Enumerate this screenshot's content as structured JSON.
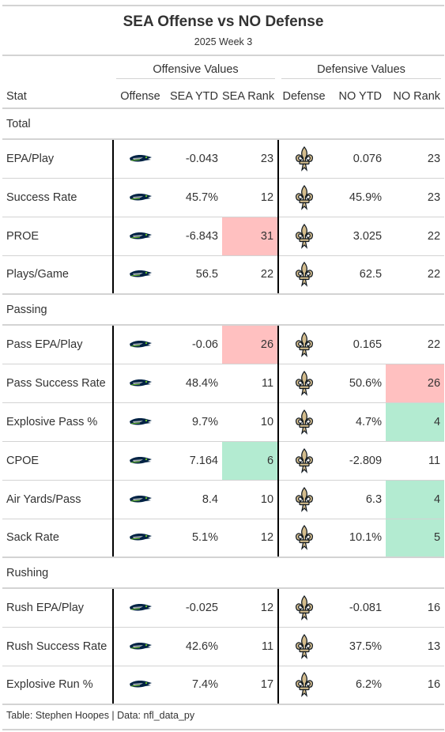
{
  "title": "SEA Offense vs NO Defense",
  "subtitle": "2025 Week 3",
  "spanners": {
    "offense": "Offensive Values",
    "defense": "Defensive Values"
  },
  "columns": {
    "stat": "Stat",
    "offense": "Offense",
    "off_ytd": "SEA YTD",
    "off_rank": "SEA Rank",
    "defense": "Defense",
    "def_ytd": "NO YTD",
    "def_rank": "NO Rank"
  },
  "groups": [
    {
      "label": "Total",
      "rows": [
        {
          "stat": "EPA/Play",
          "off_ytd": "-0.043",
          "off_rank": "23",
          "off_hl": "",
          "def_ytd": "0.076",
          "def_rank": "23",
          "def_hl": ""
        },
        {
          "stat": "Success Rate",
          "off_ytd": "45.7%",
          "off_rank": "12",
          "off_hl": "",
          "def_ytd": "45.9%",
          "def_rank": "23",
          "def_hl": ""
        },
        {
          "stat": "PROE",
          "off_ytd": "-6.843",
          "off_rank": "31",
          "off_hl": "red",
          "def_ytd": "3.025",
          "def_rank": "22",
          "def_hl": ""
        },
        {
          "stat": "Plays/Game",
          "off_ytd": "56.5",
          "off_rank": "22",
          "off_hl": "",
          "def_ytd": "62.5",
          "def_rank": "22",
          "def_hl": ""
        }
      ]
    },
    {
      "label": "Passing",
      "rows": [
        {
          "stat": "Pass EPA/Play",
          "off_ytd": "-0.06",
          "off_rank": "26",
          "off_hl": "red",
          "def_ytd": "0.165",
          "def_rank": "22",
          "def_hl": ""
        },
        {
          "stat": "Pass Success Rate",
          "off_ytd": "48.4%",
          "off_rank": "11",
          "off_hl": "",
          "def_ytd": "50.6%",
          "def_rank": "26",
          "def_hl": "red"
        },
        {
          "stat": "Explosive Pass %",
          "off_ytd": "9.7%",
          "off_rank": "10",
          "off_hl": "",
          "def_ytd": "4.7%",
          "def_rank": "4",
          "def_hl": "green"
        },
        {
          "stat": "CPOE",
          "off_ytd": "7.164",
          "off_rank": "6",
          "off_hl": "green",
          "def_ytd": "-2.809",
          "def_rank": "11",
          "def_hl": ""
        },
        {
          "stat": "Air Yards/Pass",
          "off_ytd": "8.4",
          "off_rank": "10",
          "off_hl": "",
          "def_ytd": "6.3",
          "def_rank": "4",
          "def_hl": "green"
        },
        {
          "stat": "Sack Rate",
          "off_ytd": "5.1%",
          "off_rank": "12",
          "off_hl": "",
          "def_ytd": "10.1%",
          "def_rank": "5",
          "def_hl": "green"
        }
      ]
    },
    {
      "label": "Rushing",
      "rows": [
        {
          "stat": "Rush EPA/Play",
          "off_ytd": "-0.025",
          "off_rank": "12",
          "off_hl": "",
          "def_ytd": "-0.081",
          "def_rank": "16",
          "def_hl": ""
        },
        {
          "stat": "Rush Success Rate",
          "off_ytd": "42.6%",
          "off_rank": "11",
          "off_hl": "",
          "def_ytd": "37.5%",
          "def_rank": "13",
          "def_hl": ""
        },
        {
          "stat": "Explosive Run %",
          "off_ytd": "7.4%",
          "off_rank": "17",
          "off_hl": "",
          "def_ytd": "6.2%",
          "def_rank": "16",
          "def_hl": ""
        }
      ]
    }
  ],
  "icons": {
    "offense_logo": "seahawks-logo-icon",
    "defense_logo": "saints-fleur-de-lis-icon"
  },
  "colors": {
    "bad_rank": "#ffc0c0",
    "good_rank": "#b3ebd1",
    "sea_navy": "#002244",
    "sea_green": "#69be28",
    "no_gold": "#d3bc8d",
    "no_black": "#101820"
  },
  "footer": "Table: Stephen Hoopes | Data: nfl_data_py"
}
